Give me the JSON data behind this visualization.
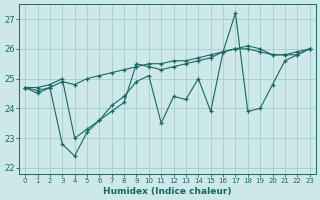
{
  "x": [
    0,
    1,
    2,
    3,
    4,
    5,
    6,
    7,
    8,
    9,
    10,
    11,
    12,
    13,
    14,
    15,
    16,
    17,
    18,
    19,
    20,
    21,
    22,
    23
  ],
  "line1": [
    24.7,
    24.5,
    24.7,
    24.9,
    24.8,
    25.0,
    25.1,
    25.2,
    25.3,
    25.4,
    25.5,
    25.5,
    25.6,
    25.6,
    25.7,
    25.8,
    25.9,
    26.0,
    26.0,
    25.9,
    25.8,
    25.8,
    25.9,
    26.0
  ],
  "line2": [
    24.7,
    24.7,
    24.8,
    25.0,
    23.0,
    23.3,
    23.6,
    23.9,
    24.2,
    25.5,
    25.4,
    25.3,
    25.4,
    25.5,
    25.6,
    25.7,
    25.9,
    26.0,
    26.1,
    26.0,
    25.8,
    25.8,
    25.8,
    26.0
  ],
  "line3": [
    24.7,
    24.6,
    24.7,
    22.8,
    22.4,
    23.2,
    23.6,
    24.1,
    24.4,
    24.9,
    25.1,
    23.5,
    24.4,
    24.3,
    25.0,
    23.9,
    25.9,
    27.2,
    23.9,
    24.0,
    24.8,
    25.6,
    25.8,
    26.0
  ],
  "bg_color": "#cce8e8",
  "grid_color": "#aacccc",
  "line_color": "#1a6666",
  "xlim": [
    -0.5,
    23.5
  ],
  "ylim": [
    21.8,
    27.5
  ],
  "yticks": [
    22,
    23,
    24,
    25,
    26,
    27
  ],
  "xticks": [
    0,
    1,
    2,
    3,
    4,
    5,
    6,
    7,
    8,
    9,
    10,
    11,
    12,
    13,
    14,
    15,
    16,
    17,
    18,
    19,
    20,
    21,
    22,
    23
  ],
  "xlabel": "Humidex (Indice chaleur)"
}
